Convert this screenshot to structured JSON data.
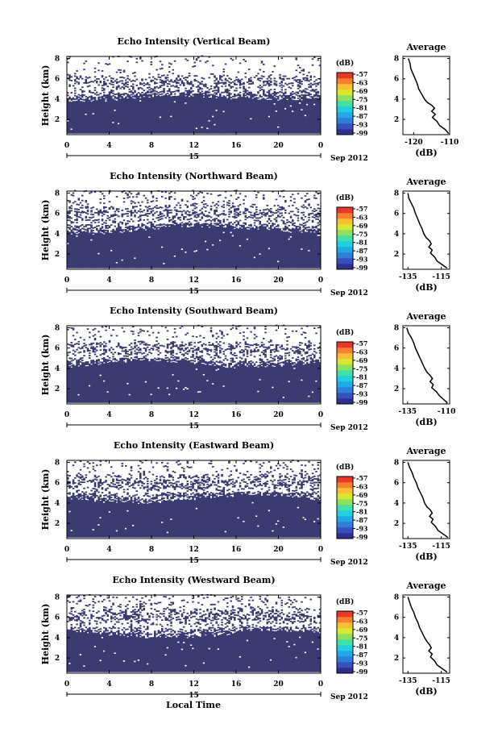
{
  "figure": {
    "xlabel": "Local Time",
    "colors": {
      "echo": "#3b3b72",
      "background": "#ffffff",
      "line": "#000000"
    },
    "colormap": [
      "#2f2f8f",
      "#3750c0",
      "#2f7fd8",
      "#20a8e8",
      "#20d0e0",
      "#40e0a8",
      "#90e060",
      "#d8e830",
      "#f8c030",
      "#f88030",
      "#e83828"
    ]
  },
  "chart_data": [
    {
      "type": "heatmap",
      "title": "Echo Intensity (Vertical Beam)",
      "xlabel": "",
      "ylabel": "Height (km)",
      "xticks": [
        "0",
        "4",
        "8",
        "12",
        "16",
        "20",
        "0"
      ],
      "yticks": [
        "2",
        "4",
        "6",
        "8"
      ],
      "xlim": [
        0,
        24
      ],
      "ylim": [
        0.5,
        8.2
      ],
      "date_label": "15",
      "month_label": "Sep 2012",
      "colorbar": {
        "unit": "(dB)",
        "ticks": [
          "-57",
          "-63",
          "-69",
          "-75",
          "-81",
          "-87",
          "-93",
          "-99"
        ]
      },
      "profile": {
        "title": "Average",
        "xticks": [
          "-120",
          "-110"
        ],
        "xlim": [
          -123,
          -110
        ],
        "yticks": [
          "2",
          "4",
          "6",
          "8"
        ],
        "xlabel": "(dB)",
        "points": [
          [
            -121.5,
            8.0
          ],
          [
            -121.0,
            7.5
          ],
          [
            -120.8,
            7.0
          ],
          [
            -120.2,
            6.5
          ],
          [
            -119.6,
            6.0
          ],
          [
            -119.0,
            5.5
          ],
          [
            -118.6,
            5.0
          ],
          [
            -117.8,
            4.5
          ],
          [
            -117.0,
            4.0
          ],
          [
            -116.3,
            3.7
          ],
          [
            -115.0,
            3.4
          ],
          [
            -114.2,
            3.1
          ],
          [
            -115.0,
            2.8
          ],
          [
            -114.0,
            2.5
          ],
          [
            -114.8,
            2.2
          ],
          [
            -113.5,
            1.8
          ],
          [
            -112.8,
            1.4
          ],
          [
            -111.2,
            1.0
          ],
          [
            -110.3,
            0.6
          ]
        ]
      },
      "echo": {
        "top_base": 4.0,
        "top_amp": 0.25,
        "base": 0.6,
        "cloud_base": 5.0,
        "cloud_top": 6.3,
        "cloud_density": 0.35,
        "high_density": 0.05,
        "solid_top": 4.1,
        "seed": 11
      }
    },
    {
      "type": "heatmap",
      "title": "Echo Intensity (Northward Beam)",
      "xlabel": "",
      "ylabel": "Height (km)",
      "xticks": [
        "0",
        "4",
        "8",
        "12",
        "16",
        "20",
        "0"
      ],
      "yticks": [
        "2",
        "4",
        "6",
        "8"
      ],
      "xlim": [
        0,
        24
      ],
      "ylim": [
        0.5,
        8.2
      ],
      "date_label": "15",
      "month_label": "Sep 2012",
      "colorbar": {
        "unit": "(dB)",
        "ticks": [
          "-57",
          "-63",
          "-69",
          "-75",
          "-81",
          "-87",
          "-93",
          "-99"
        ]
      },
      "profile": {
        "title": "Average",
        "xticks": [
          "-135",
          "-115"
        ],
        "xlim": [
          -138,
          -110
        ],
        "yticks": [
          "2",
          "4",
          "6",
          "8"
        ],
        "xlabel": "(dB)",
        "points": [
          [
            -135.0,
            8.0
          ],
          [
            -134.5,
            7.5
          ],
          [
            -133.0,
            7.0
          ],
          [
            -131.5,
            6.5
          ],
          [
            -130.5,
            6.0
          ],
          [
            -129.2,
            5.5
          ],
          [
            -128.0,
            5.0
          ],
          [
            -126.5,
            4.5
          ],
          [
            -125.5,
            4.0
          ],
          [
            -124.0,
            3.6
          ],
          [
            -122.0,
            3.3
          ],
          [
            -121.0,
            3.0
          ],
          [
            -122.5,
            2.7
          ],
          [
            -120.5,
            2.4
          ],
          [
            -121.5,
            2.1
          ],
          [
            -119.0,
            1.7
          ],
          [
            -117.5,
            1.3
          ],
          [
            -114.0,
            0.9
          ],
          [
            -111.5,
            0.6
          ]
        ]
      },
      "echo": {
        "top_base": 4.3,
        "top_amp": 0.35,
        "base": 0.6,
        "cloud_base": 5.0,
        "cloud_top": 6.8,
        "cloud_density": 0.4,
        "high_density": 0.09,
        "solid_top": 4.3,
        "seed": 23
      }
    },
    {
      "type": "heatmap",
      "title": "Echo Intensity (Southward Beam)",
      "xlabel": "",
      "ylabel": "Height (km)",
      "xticks": [
        "0",
        "4",
        "8",
        "12",
        "16",
        "20",
        "0"
      ],
      "yticks": [
        "2",
        "4",
        "6",
        "8"
      ],
      "xlim": [
        0,
        24
      ],
      "ylim": [
        0.5,
        8.2
      ],
      "date_label": "15",
      "month_label": "Sep 2012",
      "colorbar": {
        "unit": "(dB)",
        "ticks": [
          "-57",
          "-63",
          "-69",
          "-75",
          "-81",
          "-87",
          "-93",
          "-99"
        ]
      },
      "profile": {
        "title": "Average",
        "xticks": [
          "-135",
          "-110"
        ],
        "xlim": [
          -138,
          -108
        ],
        "yticks": [
          "2",
          "4",
          "6",
          "8"
        ],
        "xlabel": "(dB)",
        "points": [
          [
            -135.5,
            8.0
          ],
          [
            -134.5,
            7.5
          ],
          [
            -132.5,
            7.0
          ],
          [
            -131.0,
            6.5
          ],
          [
            -130.0,
            6.0
          ],
          [
            -128.5,
            5.5
          ],
          [
            -127.0,
            5.0
          ],
          [
            -125.5,
            4.5
          ],
          [
            -124.0,
            4.0
          ],
          [
            -122.5,
            3.6
          ],
          [
            -120.5,
            3.3
          ],
          [
            -119.0,
            3.0
          ],
          [
            -120.5,
            2.7
          ],
          [
            -118.5,
            2.4
          ],
          [
            -119.5,
            2.1
          ],
          [
            -116.5,
            1.7
          ],
          [
            -114.5,
            1.3
          ],
          [
            -111.5,
            0.9
          ],
          [
            -109.5,
            0.6
          ]
        ]
      },
      "echo": {
        "top_base": 4.3,
        "top_amp": 0.35,
        "base": 0.6,
        "cloud_base": 5.0,
        "cloud_top": 6.6,
        "cloud_density": 0.38,
        "high_density": 0.06,
        "solid_top": 4.2,
        "seed": 37
      }
    },
    {
      "type": "heatmap",
      "title": "Echo Intensity (Eastward Beam)",
      "xlabel": "",
      "ylabel": "Height (km)",
      "xticks": [
        "0",
        "4",
        "8",
        "12",
        "16",
        "20",
        "0"
      ],
      "yticks": [
        "2",
        "4",
        "6",
        "8"
      ],
      "xlim": [
        0,
        24
      ],
      "ylim": [
        0.5,
        8.2
      ],
      "date_label": "15",
      "month_label": "Sep 2012",
      "colorbar": {
        "unit": "(dB)",
        "ticks": [
          "-57",
          "-63",
          "-69",
          "-75",
          "-81",
          "-87",
          "-93",
          "-99"
        ]
      },
      "profile": {
        "title": "Average",
        "xticks": [
          "-135",
          "-115"
        ],
        "xlim": [
          -138,
          -110
        ],
        "yticks": [
          "2",
          "4",
          "6",
          "8"
        ],
        "xlabel": "(dB)",
        "points": [
          [
            -135.0,
            8.0
          ],
          [
            -134.0,
            7.5
          ],
          [
            -132.5,
            7.0
          ],
          [
            -131.5,
            6.5
          ],
          [
            -130.0,
            6.0
          ],
          [
            -129.0,
            5.5
          ],
          [
            -127.5,
            5.0
          ],
          [
            -126.0,
            4.5
          ],
          [
            -125.0,
            4.0
          ],
          [
            -123.5,
            3.6
          ],
          [
            -121.5,
            3.3
          ],
          [
            -120.5,
            3.0
          ],
          [
            -122.0,
            2.7
          ],
          [
            -120.0,
            2.4
          ],
          [
            -121.0,
            2.1
          ],
          [
            -118.5,
            1.7
          ],
          [
            -117.0,
            1.3
          ],
          [
            -113.5,
            0.9
          ],
          [
            -111.0,
            0.6
          ]
        ]
      },
      "echo": {
        "top_base": 4.3,
        "top_amp": 0.35,
        "base": 0.6,
        "cloud_base": 5.0,
        "cloud_top": 6.8,
        "cloud_density": 0.4,
        "high_density": 0.08,
        "solid_top": 4.3,
        "seed": 53
      }
    },
    {
      "type": "heatmap",
      "title": "Echo Intensity (Westward Beam)",
      "xlabel": "",
      "ylabel": "Height (km)",
      "xticks": [
        "0",
        "4",
        "8",
        "12",
        "16",
        "20",
        "0"
      ],
      "yticks": [
        "2",
        "4",
        "6",
        "8"
      ],
      "xlim": [
        0,
        24
      ],
      "ylim": [
        0.5,
        8.2
      ],
      "date_label": "15",
      "month_label": "Sep 2012",
      "colorbar": {
        "unit": "(dB)",
        "ticks": [
          "-57",
          "-63",
          "-69",
          "-75",
          "-81",
          "-87",
          "-93",
          "-99"
        ]
      },
      "profile": {
        "title": "Average",
        "xticks": [
          "-135",
          "-115"
        ],
        "xlim": [
          -138,
          -110
        ],
        "yticks": [
          "2",
          "4",
          "6",
          "8"
        ],
        "xlabel": "(dB)",
        "points": [
          [
            -135.0,
            8.0
          ],
          [
            -134.0,
            7.5
          ],
          [
            -133.0,
            7.0
          ],
          [
            -131.5,
            6.5
          ],
          [
            -130.5,
            6.0
          ],
          [
            -129.0,
            5.5
          ],
          [
            -128.0,
            5.0
          ],
          [
            -126.5,
            4.5
          ],
          [
            -125.0,
            4.0
          ],
          [
            -123.5,
            3.6
          ],
          [
            -122.0,
            3.3
          ],
          [
            -121.0,
            3.0
          ],
          [
            -122.5,
            2.7
          ],
          [
            -120.5,
            2.4
          ],
          [
            -121.5,
            2.1
          ],
          [
            -119.0,
            1.7
          ],
          [
            -117.5,
            1.3
          ],
          [
            -114.0,
            0.9
          ],
          [
            -111.5,
            0.6
          ]
        ]
      },
      "echo": {
        "top_base": 4.2,
        "top_amp": 0.3,
        "base": 0.6,
        "cloud_base": 5.0,
        "cloud_top": 7.0,
        "cloud_density": 0.4,
        "high_density": 0.1,
        "solid_top": 4.2,
        "seed": 71
      }
    }
  ]
}
